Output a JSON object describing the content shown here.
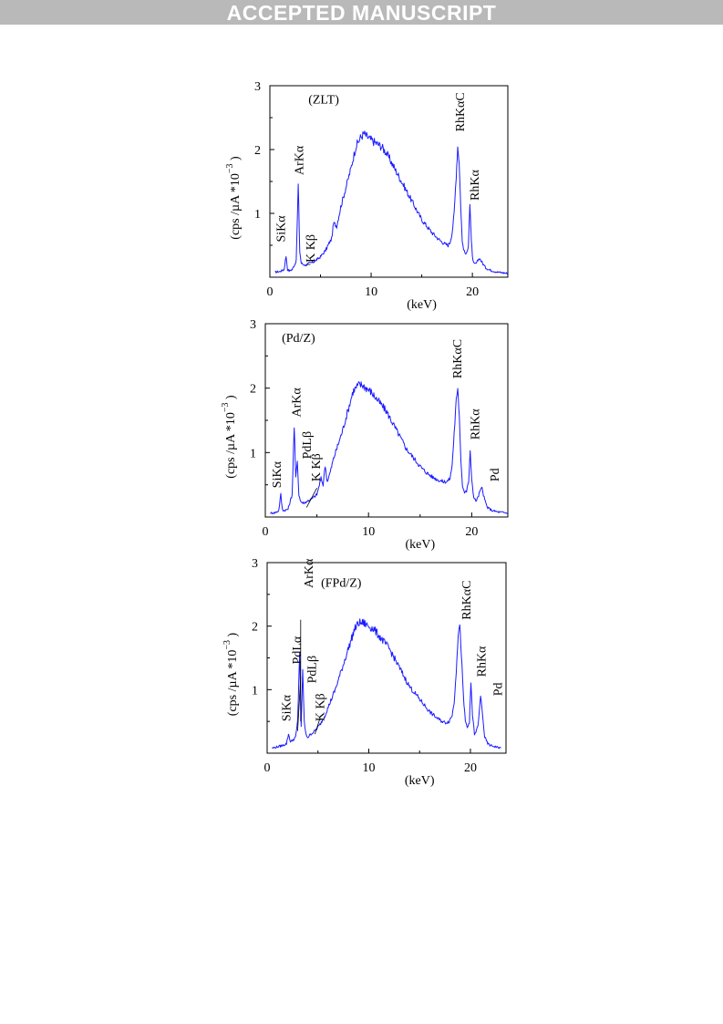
{
  "banner": "ACCEPTED MANUSCRIPT",
  "chart_data": [
    {
      "type": "line",
      "title": "(ZLT)",
      "xlabel": "(keV)",
      "ylabel": "(cps /µA *10⁻³)",
      "ylabel_parts": [
        "(cps /",
        "µ",
        "A *10",
        "−3",
        ")"
      ],
      "xlim": [
        0,
        23.5
      ],
      "ylim": [
        0,
        3
      ],
      "x_ticks": [
        0,
        10,
        20
      ],
      "y_ticks": [
        1,
        2,
        3
      ],
      "grid": false,
      "series": [
        {
          "color": "#1a1aff",
          "x": [
            0.5,
            1.0,
            1.4,
            1.6,
            1.75,
            1.9,
            2.2,
            2.6,
            2.8,
            2.95,
            3.1,
            3.3,
            3.5,
            3.7,
            3.9,
            4.2,
            4.6,
            5.0,
            5.5,
            5.9,
            6.1,
            6.3,
            6.6,
            7.0,
            7.5,
            8.0,
            8.5,
            9.0,
            9.3,
            9.6,
            10.0,
            10.5,
            11.0,
            11.5,
            12.0,
            12.5,
            13.0,
            13.5,
            14.0,
            14.5,
            15.0,
            15.5,
            16.0,
            16.5,
            17.0,
            17.3,
            17.6,
            17.8,
            18.0,
            18.2,
            18.4,
            18.55,
            18.7,
            18.85,
            19.0,
            19.2,
            19.4,
            19.6,
            19.75,
            19.9,
            20.05,
            20.2,
            20.4,
            20.7,
            21.0,
            21.3,
            21.6,
            22.0,
            22.5,
            23.0,
            23.5
          ],
          "y": [
            0.08,
            0.09,
            0.12,
            0.33,
            0.12,
            0.1,
            0.12,
            0.25,
            1.45,
            0.4,
            0.22,
            0.2,
            0.19,
            0.2,
            0.22,
            0.23,
            0.27,
            0.32,
            0.42,
            0.55,
            0.6,
            0.85,
            0.8,
            1.1,
            1.4,
            1.7,
            2.05,
            2.2,
            2.25,
            2.2,
            2.15,
            2.1,
            2.05,
            1.95,
            1.8,
            1.65,
            1.5,
            1.35,
            1.2,
            1.05,
            0.9,
            0.8,
            0.7,
            0.62,
            0.55,
            0.52,
            0.5,
            0.55,
            0.7,
            1.0,
            1.6,
            2.05,
            1.8,
            1.1,
            0.55,
            0.4,
            0.35,
            0.5,
            1.15,
            0.55,
            0.25,
            0.2,
            0.22,
            0.3,
            0.22,
            0.15,
            0.12,
            0.1,
            0.08,
            0.07,
            0.06
          ]
        }
      ],
      "annotations": [
        {
          "text": "SiKα"
        },
        {
          "text": "ArKα"
        },
        {
          "text": "K Kβ"
        },
        {
          "text": "RhKαC"
        },
        {
          "text": "RhKα"
        }
      ]
    },
    {
      "type": "line",
      "title": "(Pd/Z)",
      "xlabel": "(keV)",
      "ylabel": "(cps /µA *10⁻³)",
      "ylabel_parts": [
        "(cps /",
        "µ",
        "A *10",
        "−3",
        ")"
      ],
      "xlim": [
        0,
        23.5
      ],
      "ylim": [
        0,
        3
      ],
      "x_ticks": [
        0,
        10,
        20
      ],
      "y_ticks": [
        1,
        2,
        3
      ],
      "grid": false,
      "series": [
        {
          "color": "#1a1aff",
          "x": [
            0.5,
            1.0,
            1.3,
            1.5,
            1.65,
            1.8,
            2.2,
            2.6,
            2.8,
            2.95,
            3.1,
            3.25,
            3.4,
            3.6,
            3.8,
            4.1,
            4.5,
            5.0,
            5.4,
            5.6,
            5.8,
            6.0,
            6.3,
            6.6,
            7.0,
            7.5,
            8.0,
            8.5,
            9.0,
            9.4,
            9.8,
            10.2,
            10.7,
            11.2,
            11.7,
            12.2,
            12.7,
            13.2,
            13.7,
            14.2,
            14.7,
            15.2,
            15.7,
            16.2,
            16.7,
            17.2,
            17.6,
            17.9,
            18.1,
            18.3,
            18.5,
            18.65,
            18.8,
            18.95,
            19.1,
            19.3,
            19.5,
            19.7,
            19.85,
            20.0,
            20.2,
            20.4,
            20.6,
            20.8,
            21.0,
            21.2,
            21.5,
            22.0,
            22.5,
            23.0,
            23.5
          ],
          "y": [
            0.06,
            0.07,
            0.1,
            0.35,
            0.12,
            0.1,
            0.12,
            0.35,
            1.4,
            0.6,
            0.9,
            0.35,
            0.25,
            0.22,
            0.22,
            0.25,
            0.28,
            0.35,
            0.6,
            0.5,
            0.8,
            0.55,
            0.7,
            0.9,
            1.1,
            1.35,
            1.65,
            1.95,
            2.05,
            2.05,
            2.0,
            1.95,
            1.85,
            1.75,
            1.65,
            1.5,
            1.35,
            1.2,
            1.05,
            0.95,
            0.85,
            0.75,
            0.68,
            0.62,
            0.58,
            0.55,
            0.55,
            0.6,
            0.8,
            1.3,
            1.8,
            1.95,
            1.6,
            0.9,
            0.5,
            0.38,
            0.4,
            0.55,
            1.0,
            0.6,
            0.3,
            0.25,
            0.3,
            0.4,
            0.45,
            0.3,
            0.15,
            0.1,
            0.08,
            0.07,
            0.06
          ]
        }
      ],
      "annotations": [
        {
          "text": "SiKα"
        },
        {
          "text": "ArKα"
        },
        {
          "text": "PdLβ"
        },
        {
          "text": "K Kβ"
        },
        {
          "text": "RhKαC"
        },
        {
          "text": "RhKα"
        },
        {
          "text": "Pd"
        }
      ]
    },
    {
      "type": "line",
      "title": "(FPd/Z)",
      "xlabel": "(keV)",
      "ylabel": "(cps /µA *10⁻³)",
      "ylabel_parts": [
        "(cps /",
        "µ",
        "A *10",
        "−3",
        ")"
      ],
      "xlim": [
        0,
        23.5
      ],
      "ylim": [
        0,
        3
      ],
      "x_ticks": [
        0,
        10,
        20
      ],
      "y_ticks": [
        1,
        2,
        3
      ],
      "grid": false,
      "series": [
        {
          "color": "#1a1aff",
          "x": [
            0.5,
            1.0,
            1.5,
            1.9,
            2.1,
            2.3,
            2.5,
            2.8,
            3.0,
            3.2,
            3.35,
            3.5,
            3.65,
            3.8,
            4.0,
            4.3,
            4.7,
            5.2,
            5.7,
            6.2,
            6.7,
            7.2,
            7.7,
            8.2,
            8.6,
            9.0,
            9.5,
            10.0,
            10.5,
            11.0,
            11.5,
            12.0,
            12.5,
            13.0,
            13.5,
            14.0,
            14.5,
            15.0,
            15.5,
            16.0,
            16.5,
            17.0,
            17.5,
            17.9,
            18.2,
            18.4,
            18.6,
            18.8,
            18.95,
            19.1,
            19.3,
            19.5,
            19.7,
            19.9,
            20.05,
            20.2,
            20.4,
            20.6,
            20.8,
            21.0,
            21.2,
            21.4,
            21.7,
            22.0,
            22.5,
            23.0
          ],
          "y": [
            0.08,
            0.1,
            0.12,
            0.15,
            0.3,
            0.18,
            0.2,
            0.25,
            0.5,
            1.6,
            0.4,
            1.3,
            0.5,
            0.3,
            0.25,
            0.3,
            0.35,
            0.45,
            0.6,
            0.8,
            1.0,
            1.25,
            1.5,
            1.75,
            1.95,
            2.05,
            2.05,
            2.0,
            1.95,
            1.85,
            1.75,
            1.65,
            1.5,
            1.35,
            1.2,
            1.05,
            0.95,
            0.85,
            0.75,
            0.65,
            0.58,
            0.52,
            0.48,
            0.5,
            0.6,
            0.8,
            1.3,
            1.9,
            2.0,
            1.6,
            0.9,
            0.5,
            0.4,
            0.5,
            1.1,
            0.6,
            0.3,
            0.35,
            0.5,
            0.9,
            0.6,
            0.25,
            0.15,
            0.12,
            0.1,
            0.08
          ]
        }
      ],
      "annotations": [
        {
          "text": "SiKα"
        },
        {
          "text": "PdLα"
        },
        {
          "text": "ArKα"
        },
        {
          "text": "PdLβ"
        },
        {
          "text": "K Kβ"
        },
        {
          "text": "RhKαC"
        },
        {
          "text": "RhKα"
        },
        {
          "text": "Pd"
        }
      ]
    }
  ]
}
